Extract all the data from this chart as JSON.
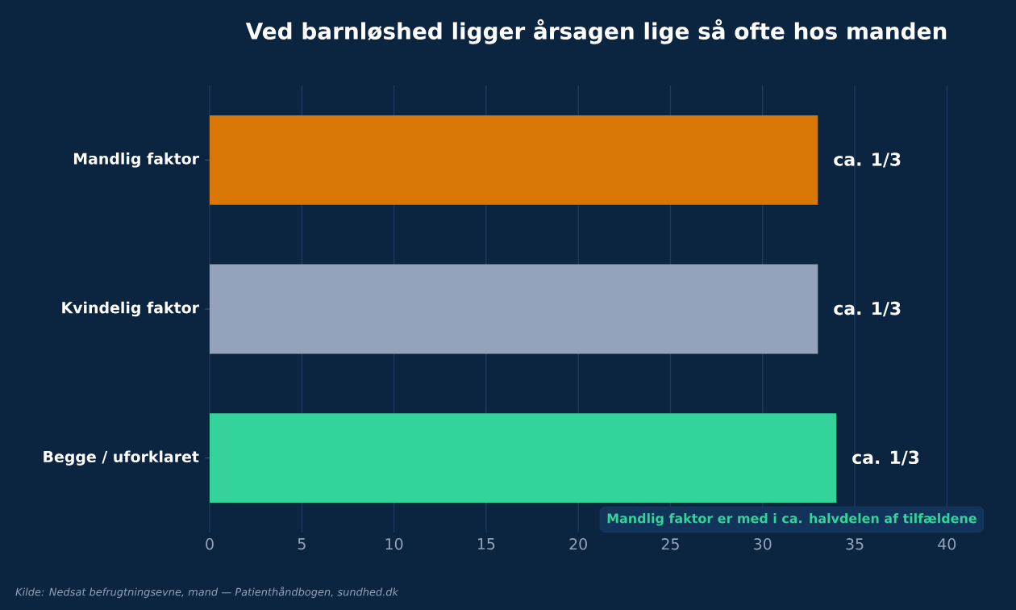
{
  "chart_data": {
    "type": "bar",
    "orientation": "horizontal",
    "title": "Ved barnløshed ligger årsagen lige så ofte hos manden",
    "categories": [
      "Mandlig faktor",
      "Kvindelig faktor",
      "Begge / uforklaret"
    ],
    "values": [
      33,
      33,
      34
    ],
    "colors": [
      "#d97706",
      "#94a3bb",
      "#34d399"
    ],
    "value_labels": [
      "ca. 1/3",
      "ca. 1/3",
      "ca. 1/3"
    ],
    "xlim": [
      0,
      42
    ],
    "xticks": [
      0,
      5,
      10,
      15,
      20,
      25,
      30,
      35,
      40
    ],
    "grid": "x",
    "annotations": [
      "Mandlig faktor er med i ca. halvdelen af tilfældene",
      "Kilde: Nedsat befrugtningsevne, mand — Patienthåndbogen, sundhed.dk"
    ]
  }
}
